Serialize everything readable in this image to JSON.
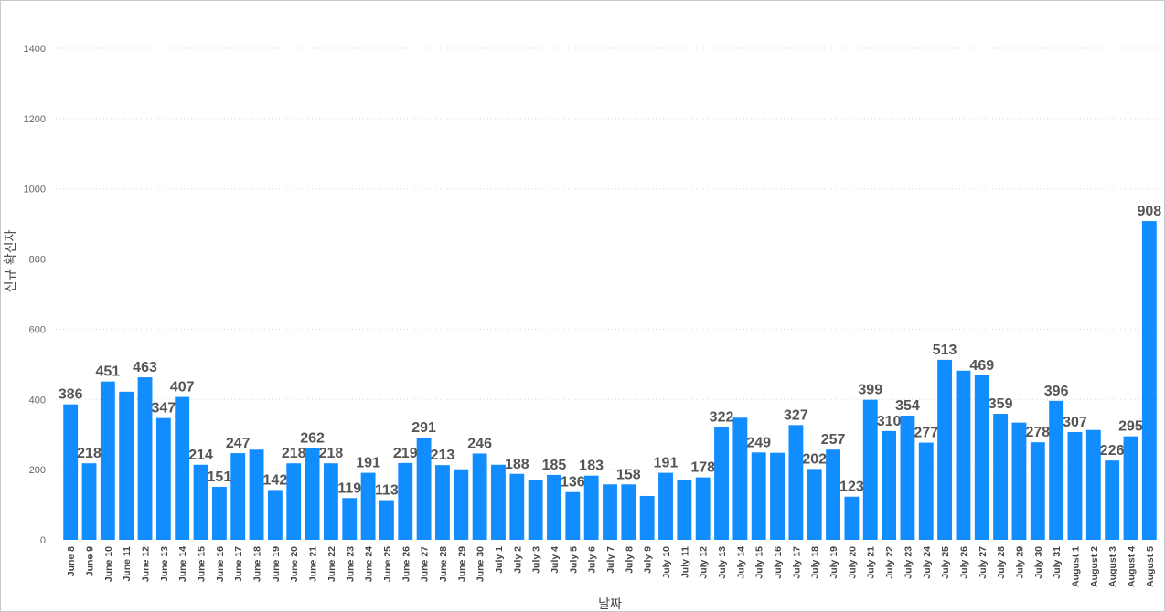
{
  "chart_data": {
    "type": "bar",
    "title": "",
    "xlabel": "날짜",
    "ylabel": "신규 확진자",
    "ylim": [
      0,
      1400
    ],
    "yticks": [
      0,
      200,
      400,
      600,
      800,
      1000,
      1200,
      1400
    ],
    "grid": true,
    "bar_color": "#118DFF",
    "categories": [
      "June 8",
      "June 9",
      "June 10",
      "June 11",
      "June 12",
      "June 13",
      "June 14",
      "June 15",
      "June 16",
      "June 17",
      "June 18",
      "June 19",
      "June 20",
      "June 21",
      "June 22",
      "June 23",
      "June 24",
      "June 25",
      "June 26",
      "June 27",
      "June 28",
      "June 29",
      "June 30",
      "July 1",
      "July 2",
      "July 3",
      "July 4",
      "July 5",
      "July 6",
      "July 7",
      "July 8",
      "July 9",
      "July 10",
      "July 11",
      "July 12",
      "July 13",
      "July 14",
      "July 15",
      "July 16",
      "July 17",
      "July 18",
      "July 19",
      "July 20",
      "July 21",
      "July 22",
      "July 23",
      "July 24",
      "July 25",
      "July 26",
      "July 27",
      "July 28",
      "July 29",
      "July 30",
      "July 31",
      "August 1",
      "August 2",
      "August 3",
      "August 4",
      "August 5"
    ],
    "values": [
      386,
      218,
      451,
      422,
      463,
      347,
      407,
      214,
      151,
      247,
      257,
      142,
      218,
      262,
      218,
      119,
      191,
      113,
      219,
      291,
      213,
      201,
      246,
      214,
      188,
      170,
      185,
      136,
      183,
      158,
      158,
      125,
      191,
      170,
      178,
      322,
      348,
      249,
      248,
      327,
      202,
      257,
      123,
      399,
      310,
      354,
      277,
      513,
      482,
      469,
      359,
      334,
      278,
      396,
      307,
      313,
      226,
      295,
      908
    ],
    "labeled": [
      true,
      true,
      true,
      false,
      true,
      true,
      true,
      true,
      true,
      true,
      false,
      true,
      true,
      true,
      true,
      true,
      true,
      true,
      true,
      true,
      true,
      false,
      true,
      false,
      true,
      false,
      true,
      true,
      true,
      false,
      true,
      false,
      true,
      false,
      true,
      true,
      false,
      true,
      false,
      true,
      true,
      true,
      true,
      true,
      true,
      true,
      true,
      true,
      false,
      true,
      true,
      false,
      true,
      true,
      true,
      false,
      true,
      true,
      true
    ]
  }
}
